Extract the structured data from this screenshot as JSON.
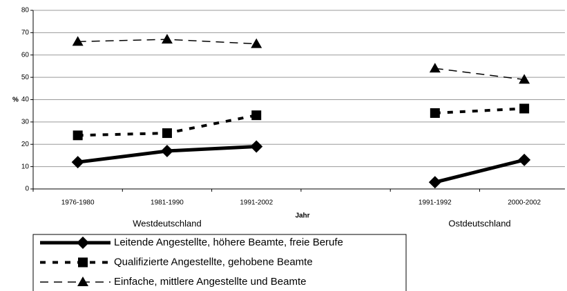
{
  "chart_data": {
    "type": "line",
    "x_label": "Jahr",
    "y_label": "%",
    "categories": [
      "1976-1980",
      "1981-1990",
      "1991-2002",
      null,
      "1991-1992",
      "2000-2002"
    ],
    "group_labels": [
      "Westdeutschland",
      "Ostdeutschland"
    ],
    "series": [
      {
        "name": "Leitende Angestellte, höhere Beamte, freie Berufe",
        "color": "#000000",
        "marker": "diamond",
        "dash": "solid",
        "width": 5,
        "values": [
          12,
          17,
          19,
          null,
          3,
          13
        ]
      },
      {
        "name": "Qualifizierte Angestellte, gehobene Beamte",
        "color": "#000000",
        "marker": "square",
        "dash": "dotted",
        "width": 4,
        "values": [
          24,
          25,
          33,
          null,
          34,
          36
        ]
      },
      {
        "name": "Einfache, mittlere Angestellte und Beamte",
        "color": "#000000",
        "marker": "triangle",
        "dash": "dashed",
        "width": 1.5,
        "values": [
          66,
          67,
          65,
          null,
          54,
          49
        ]
      }
    ],
    "ylim": [
      0,
      80
    ],
    "yticks": [
      0,
      10,
      20,
      30,
      40,
      50,
      60,
      70,
      80
    ],
    "grid": true
  }
}
